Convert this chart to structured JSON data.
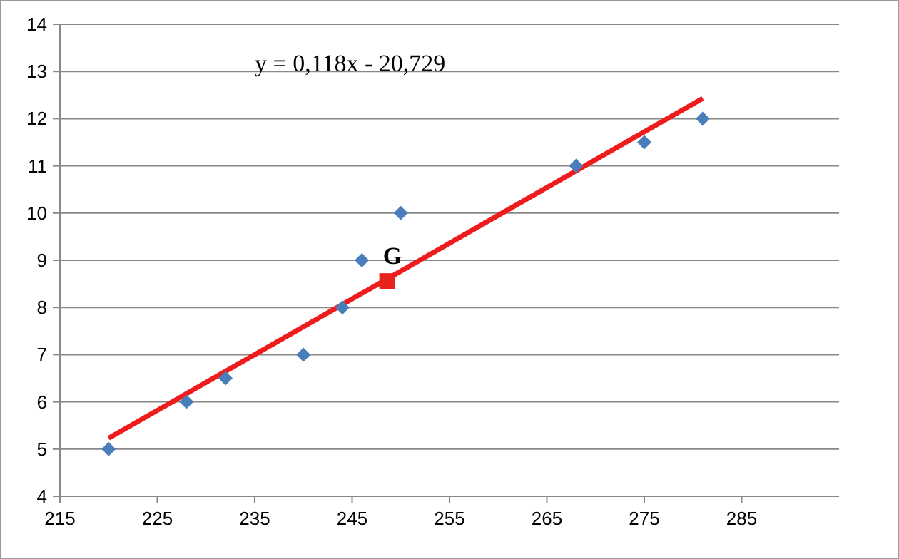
{
  "chart_data": {
    "type": "scatter",
    "xlim": [
      215,
      295
    ],
    "ylim": [
      4,
      14
    ],
    "xticks": [
      215,
      225,
      235,
      245,
      255,
      265,
      275,
      285
    ],
    "yticks": [
      4,
      5,
      6,
      7,
      8,
      9,
      10,
      11,
      12,
      13,
      14
    ],
    "grid": "y",
    "series": [
      {
        "type": "line",
        "color": "#ee1c1c",
        "marker": "none",
        "line_style": "solid",
        "x": [
          220,
          281
        ],
        "values": [
          5.23,
          12.43
        ]
      },
      {
        "color": "#4a7ebb",
        "marker": "diamond",
        "x": [
          220,
          228,
          232,
          240,
          244,
          246,
          250,
          268,
          275,
          281
        ],
        "values": [
          5,
          6,
          6.5,
          7,
          8,
          9,
          10,
          11,
          11.5,
          12
        ]
      },
      {
        "color": "#e8231c",
        "marker": "square",
        "x": [
          248.6
        ],
        "values": [
          8.56
        ]
      }
    ],
    "annotations": [
      "y = 0,118x - 20,729",
      {
        "text": "G",
        "x": 248.6,
        "y": 8.56
      }
    ]
  }
}
